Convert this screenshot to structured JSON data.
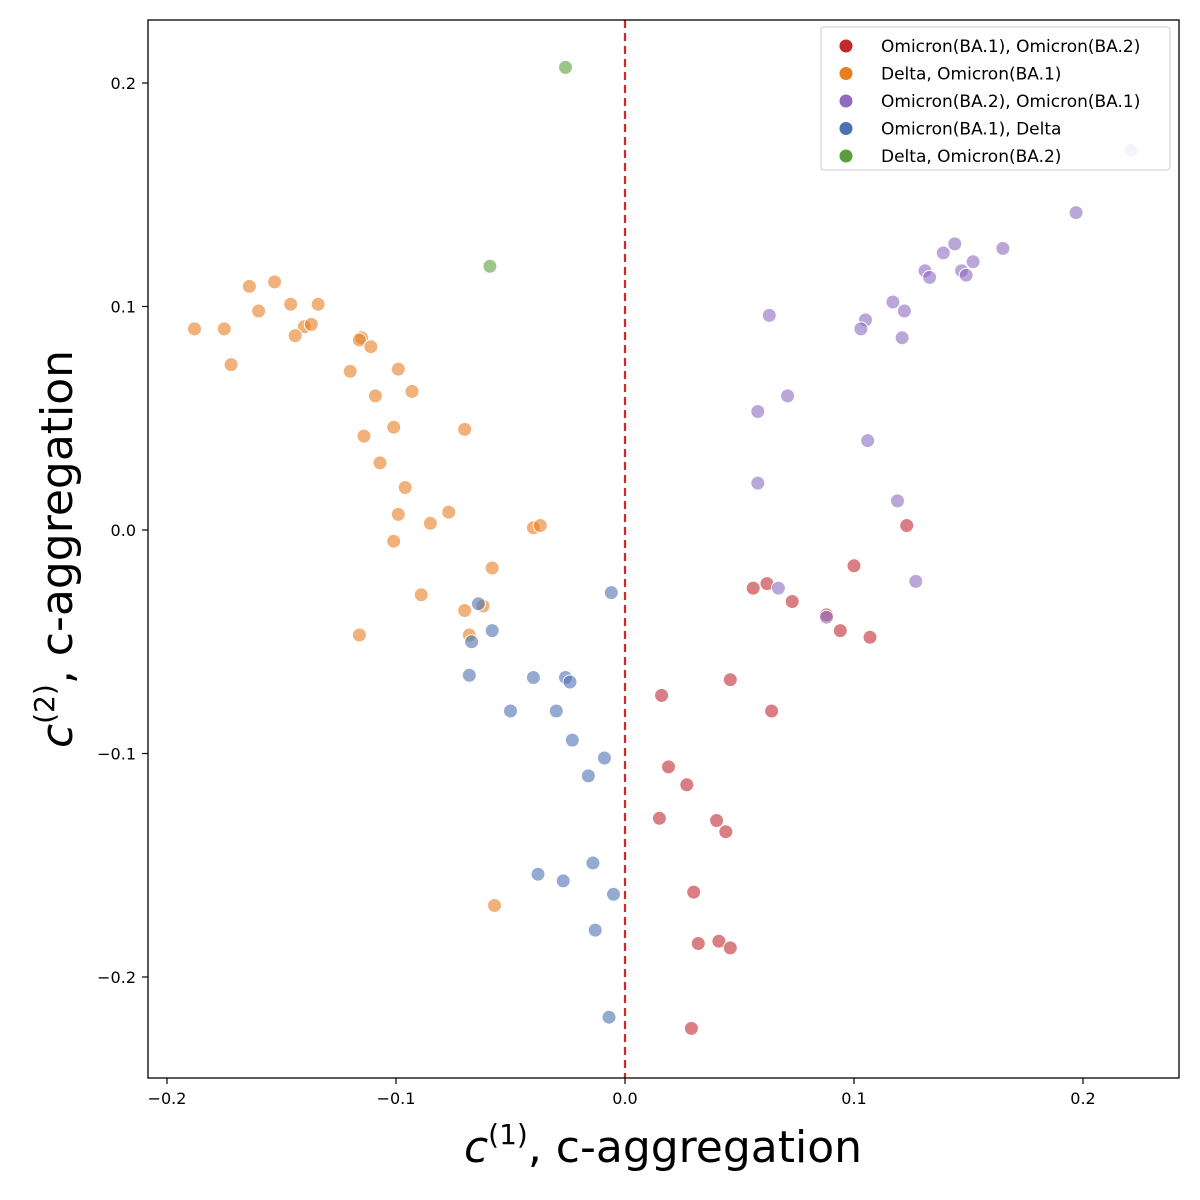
{
  "chart_data": {
    "type": "scatter",
    "xlabel": {
      "symbol": "c",
      "sup": "(1)",
      "rest": ", c-aggregation"
    },
    "ylabel": {
      "symbol": "c",
      "sup": "(2)",
      "rest": ", c-aggregation"
    },
    "xlim": [
      -0.2,
      0.2
    ],
    "ylim": [
      -0.2,
      0.2
    ],
    "x_ticks": [
      -0.2,
      -0.1,
      0.0,
      0.1,
      0.2
    ],
    "y_ticks": [
      -0.2,
      -0.1,
      0.0,
      0.1,
      0.2
    ],
    "x_tick_labels": [
      "−0.2",
      "−0.1",
      "0.0",
      "0.1",
      "0.2"
    ],
    "y_tick_labels": [
      "−0.2",
      "−0.1",
      "0.0",
      "0.1",
      "0.2"
    ],
    "grid": false,
    "reference_line": {
      "axis": "x",
      "value": 0.0,
      "style": "dashed",
      "color": "#d62728"
    },
    "legend_position": "top-right",
    "series": [
      {
        "name": "Omicron(BA.1), Omicron(BA.2)",
        "color": "#c0282f",
        "points": [
          [
            0.123,
            0.002
          ],
          [
            0.1,
            -0.016
          ],
          [
            0.056,
            -0.026
          ],
          [
            0.062,
            -0.024
          ],
          [
            0.073,
            -0.032
          ],
          [
            0.088,
            -0.038
          ],
          [
            0.094,
            -0.045
          ],
          [
            0.107,
            -0.048
          ],
          [
            0.016,
            -0.074
          ],
          [
            0.046,
            -0.067
          ],
          [
            0.064,
            -0.081
          ],
          [
            0.019,
            -0.106
          ],
          [
            0.027,
            -0.114
          ],
          [
            0.015,
            -0.129
          ],
          [
            0.04,
            -0.13
          ],
          [
            0.044,
            -0.135
          ],
          [
            0.03,
            -0.162
          ],
          [
            0.032,
            -0.185
          ],
          [
            0.041,
            -0.184
          ],
          [
            0.046,
            -0.187
          ],
          [
            0.029,
            -0.223
          ]
        ]
      },
      {
        "name": "Delta, Omicron(BA.1)",
        "color": "#e67e22",
        "points": [
          [
            -0.164,
            0.109
          ],
          [
            -0.153,
            0.111
          ],
          [
            -0.146,
            0.101
          ],
          [
            -0.134,
            0.101
          ],
          [
            -0.16,
            0.098
          ],
          [
            -0.188,
            0.09
          ],
          [
            -0.175,
            0.09
          ],
          [
            -0.14,
            0.091
          ],
          [
            -0.137,
            0.092
          ],
          [
            -0.144,
            0.087
          ],
          [
            -0.115,
            0.086
          ],
          [
            -0.116,
            0.085
          ],
          [
            -0.111,
            0.082
          ],
          [
            -0.172,
            0.074
          ],
          [
            -0.12,
            0.071
          ],
          [
            -0.099,
            0.072
          ],
          [
            -0.093,
            0.062
          ],
          [
            -0.109,
            0.06
          ],
          [
            -0.101,
            0.046
          ],
          [
            -0.07,
            0.045
          ],
          [
            -0.114,
            0.042
          ],
          [
            -0.107,
            0.03
          ],
          [
            -0.096,
            0.019
          ],
          [
            -0.077,
            0.008
          ],
          [
            -0.099,
            0.007
          ],
          [
            -0.085,
            0.003
          ],
          [
            -0.04,
            0.001
          ],
          [
            -0.037,
            0.002
          ],
          [
            -0.101,
            -0.005
          ],
          [
            -0.058,
            -0.017
          ],
          [
            -0.089,
            -0.029
          ],
          [
            -0.07,
            -0.036
          ],
          [
            -0.062,
            -0.034
          ],
          [
            -0.068,
            -0.047
          ],
          [
            -0.116,
            -0.047
          ],
          [
            -0.057,
            -0.168
          ]
        ]
      },
      {
        "name": "Omicron(BA.2), Omicron(BA.1)",
        "color": "#8e6bbf",
        "points": [
          [
            0.221,
            0.17
          ],
          [
            0.197,
            0.142
          ],
          [
            0.165,
            0.126
          ],
          [
            0.144,
            0.128
          ],
          [
            0.139,
            0.124
          ],
          [
            0.152,
            0.12
          ],
          [
            0.147,
            0.116
          ],
          [
            0.131,
            0.116
          ],
          [
            0.149,
            0.114
          ],
          [
            0.133,
            0.113
          ],
          [
            0.117,
            0.102
          ],
          [
            0.122,
            0.098
          ],
          [
            0.063,
            0.096
          ],
          [
            0.105,
            0.094
          ],
          [
            0.103,
            0.09
          ],
          [
            0.121,
            0.086
          ],
          [
            0.071,
            0.06
          ],
          [
            0.058,
            0.053
          ],
          [
            0.106,
            0.04
          ],
          [
            0.058,
            0.021
          ],
          [
            0.119,
            0.013
          ],
          [
            0.127,
            -0.023
          ],
          [
            0.067,
            -0.026
          ],
          [
            0.088,
            -0.039
          ]
        ]
      },
      {
        "name": "Omicron(BA.1), Delta",
        "color": "#4c72b0",
        "points": [
          [
            -0.006,
            -0.028
          ],
          [
            -0.064,
            -0.033
          ],
          [
            -0.058,
            -0.045
          ],
          [
            -0.067,
            -0.05
          ],
          [
            -0.068,
            -0.065
          ],
          [
            -0.04,
            -0.066
          ],
          [
            -0.026,
            -0.066
          ],
          [
            -0.024,
            -0.068
          ],
          [
            -0.05,
            -0.081
          ],
          [
            -0.03,
            -0.081
          ],
          [
            -0.023,
            -0.094
          ],
          [
            -0.009,
            -0.102
          ],
          [
            -0.016,
            -0.11
          ],
          [
            -0.014,
            -0.149
          ],
          [
            -0.038,
            -0.154
          ],
          [
            -0.027,
            -0.157
          ],
          [
            -0.005,
            -0.163
          ],
          [
            -0.013,
            -0.179
          ],
          [
            -0.007,
            -0.218
          ]
        ]
      },
      {
        "name": "Delta, Omicron(BA.2)",
        "color": "#5a9e3a",
        "points": [
          [
            -0.026,
            0.207
          ],
          [
            -0.059,
            0.118
          ]
        ]
      }
    ]
  }
}
